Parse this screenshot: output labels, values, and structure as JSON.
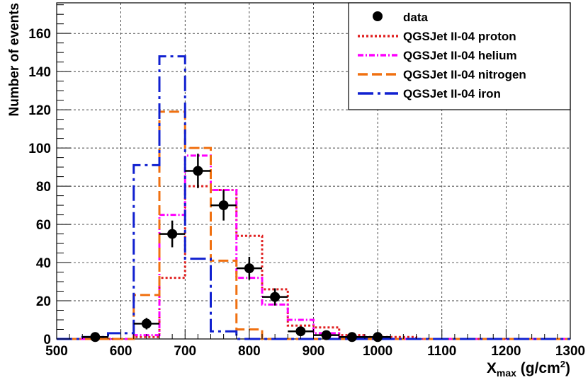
{
  "chart_data": {
    "type": "histogram",
    "title": "",
    "xlabel": "X",
    "xlabel_sub": "max",
    "xlabel_unit_pre": " (g/cm",
    "xlabel_unit_sup": "2",
    "xlabel_unit_post": ")",
    "ylabel": "Number of events",
    "xlim": [
      500,
      1300
    ],
    "ylim": [
      0,
      176
    ],
    "x_ticks": [
      500,
      600,
      700,
      800,
      900,
      1000,
      1100,
      1200,
      1300
    ],
    "y_ticks": [
      0,
      20,
      40,
      60,
      80,
      100,
      120,
      140,
      160
    ],
    "grid": true,
    "legend_position": "top-right",
    "bin_edges": [
      500,
      540,
      580,
      620,
      660,
      700,
      740,
      780,
      820,
      860,
      900,
      940,
      980,
      1020,
      1060,
      1100,
      1140,
      1180,
      1220,
      1260,
      1300
    ],
    "data": {
      "name": "data",
      "color": "#000000",
      "x": [
        560,
        640,
        680,
        720,
        760,
        800,
        840,
        880,
        920,
        960,
        1000
      ],
      "y": [
        1,
        8,
        55,
        88,
        70,
        37,
        22,
        4,
        2,
        1,
        1
      ],
      "yerr": [
        1,
        3,
        7,
        9,
        8,
        6,
        4.5,
        2,
        1.4,
        1,
        1
      ]
    },
    "series": [
      {
        "name": "QGSJet II-04 proton",
        "color": "#e02020",
        "dash": "3,3",
        "values": [
          0,
          0,
          0,
          1,
          32,
          80,
          78,
          54,
          26,
          7,
          6,
          2,
          1,
          1,
          0,
          0,
          0,
          0,
          0,
          0
        ]
      },
      {
        "name": "QGSJet II-04 helium",
        "color": "#ff00ff",
        "dash": "8,3,2,3",
        "values": [
          0,
          0,
          0,
          2,
          65,
          96,
          78,
          32,
          18,
          10,
          3,
          1,
          0,
          0,
          0,
          0,
          0,
          0,
          0,
          0
        ]
      },
      {
        "name": "QGSJet II-04 nitrogen",
        "color": "#f07010",
        "dash": "14,6",
        "values": [
          0,
          0,
          0,
          23,
          119,
          100,
          41,
          5,
          0,
          0,
          0,
          0,
          0,
          0,
          0,
          0,
          0,
          0,
          0,
          0
        ]
      },
      {
        "name": "QGSJet II-04 iron",
        "color": "#1020d0",
        "dash": "22,6,4,6",
        "values": [
          0,
          1,
          3,
          91,
          148,
          42,
          4,
          0,
          0,
          0,
          0,
          0,
          0,
          0,
          0,
          0,
          0,
          0,
          0,
          0
        ]
      }
    ]
  }
}
